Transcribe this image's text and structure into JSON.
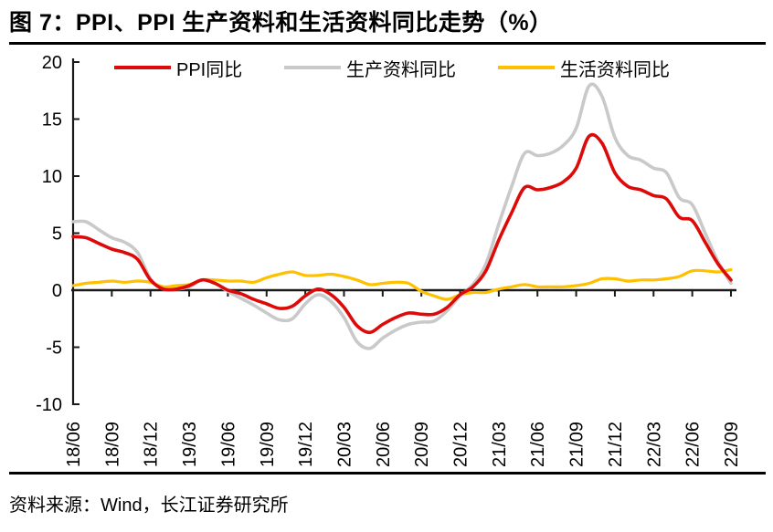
{
  "header": {
    "title": "图 7：PPI、PPI 生产资料和生活资料同比走势（%）"
  },
  "footer": {
    "source": "资料来源：Wind，长江证券研究所"
  },
  "colors": {
    "axis": "#1a1a1a",
    "ppi": "#dd0a0a",
    "production": "#c9c9c9",
    "living": "#ffc000"
  },
  "chart_data": {
    "type": "line",
    "title": "图 7：PPI、PPI 生产资料和生活资料同比走势（%）",
    "xlabel": "",
    "ylabel": "",
    "ylim": [
      -10,
      20
    ],
    "yticks": [
      20,
      15,
      10,
      5,
      0,
      -5,
      -10
    ],
    "grid": false,
    "legend_position": "top",
    "x": [
      "18/06",
      "18/07",
      "18/08",
      "18/09",
      "18/10",
      "18/11",
      "18/12",
      "19/01",
      "19/02",
      "19/03",
      "19/04",
      "19/05",
      "19/06",
      "19/07",
      "19/08",
      "19/09",
      "19/10",
      "19/11",
      "19/12",
      "20/01",
      "20/02",
      "20/03",
      "20/04",
      "20/05",
      "20/06",
      "20/07",
      "20/08",
      "20/09",
      "20/10",
      "20/11",
      "20/12",
      "21/01",
      "21/02",
      "21/03",
      "21/04",
      "21/05",
      "21/06",
      "21/07",
      "21/08",
      "21/09",
      "21/10",
      "21/11",
      "21/12",
      "22/01",
      "22/02",
      "22/03",
      "22/04",
      "22/05",
      "22/06",
      "22/07",
      "22/08",
      "22/09"
    ],
    "x_tick_labels": [
      "18/06",
      "18/09",
      "18/12",
      "19/03",
      "19/06",
      "19/09",
      "19/12",
      "20/03",
      "20/06",
      "20/09",
      "20/12",
      "21/03",
      "21/06",
      "21/09",
      "21/12",
      "22/03",
      "22/06",
      "22/09"
    ],
    "x_tick_every": 3,
    "series": [
      {
        "name": "PPI同比",
        "color": "#dd0a0a",
        "values": [
          4.7,
          4.6,
          4.1,
          3.6,
          3.3,
          2.7,
          0.9,
          0.1,
          0.1,
          0.4,
          0.9,
          0.6,
          0.0,
          -0.3,
          -0.8,
          -1.2,
          -1.6,
          -1.4,
          -0.5,
          0.1,
          -0.4,
          -1.5,
          -3.1,
          -3.7,
          -3.0,
          -2.4,
          -2.0,
          -2.1,
          -2.1,
          -1.5,
          -0.4,
          0.3,
          1.7,
          4.4,
          6.8,
          9.0,
          8.8,
          9.0,
          9.5,
          10.7,
          13.5,
          12.9,
          10.3,
          9.1,
          8.8,
          8.3,
          8.0,
          6.4,
          6.1,
          4.2,
          2.3,
          0.9
        ]
      },
      {
        "name": "生产资料同比",
        "color": "#c9c9c9",
        "values": [
          6.0,
          6.0,
          5.3,
          4.6,
          4.2,
          3.3,
          1.0,
          0.1,
          0.1,
          0.3,
          0.9,
          0.6,
          -0.1,
          -0.7,
          -1.3,
          -2.0,
          -2.6,
          -2.5,
          -1.2,
          -0.4,
          -1.0,
          -2.4,
          -4.5,
          -5.1,
          -4.2,
          -3.5,
          -3.0,
          -2.8,
          -2.7,
          -1.8,
          -0.5,
          0.5,
          2.3,
          5.8,
          9.1,
          12.0,
          11.8,
          12.0,
          12.7,
          14.2,
          17.9,
          17.0,
          13.4,
          11.8,
          11.4,
          10.7,
          10.3,
          8.1,
          7.5,
          5.0,
          2.5,
          0.6
        ]
      },
      {
        "name": "生活资料同比",
        "color": "#ffc000",
        "values": [
          0.4,
          0.6,
          0.7,
          0.8,
          0.7,
          0.8,
          0.7,
          0.3,
          0.4,
          0.5,
          0.9,
          0.9,
          0.8,
          0.8,
          0.7,
          1.1,
          1.4,
          1.6,
          1.3,
          1.3,
          1.4,
          1.2,
          0.9,
          0.5,
          0.6,
          0.7,
          0.6,
          -0.1,
          -0.5,
          -0.8,
          -0.4,
          -0.2,
          -0.2,
          0.1,
          0.3,
          0.5,
          0.3,
          0.3,
          0.3,
          0.4,
          0.6,
          1.0,
          1.0,
          0.8,
          0.9,
          0.9,
          1.0,
          1.2,
          1.7,
          1.7,
          1.6,
          1.8
        ]
      }
    ]
  }
}
